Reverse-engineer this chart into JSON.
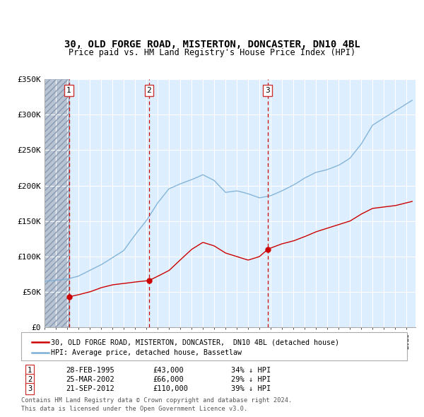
{
  "title1": "30, OLD FORGE ROAD, MISTERTON, DONCASTER, DN10 4BL",
  "title2": "Price paid vs. HM Land Registry's House Price Index (HPI)",
  "ylim": [
    0,
    350000
  ],
  "yticks": [
    0,
    50000,
    100000,
    150000,
    200000,
    250000,
    300000,
    350000
  ],
  "ytick_labels": [
    "£0",
    "£50K",
    "£100K",
    "£150K",
    "£200K",
    "£250K",
    "£300K",
    "£350K"
  ],
  "xlim_start": 1993.0,
  "xlim_end": 2025.8,
  "transactions": [
    {
      "num": 1,
      "date": "28-FEB-1995",
      "date_val": 1995.16,
      "price": 43000,
      "label": "34% ↓ HPI"
    },
    {
      "num": 2,
      "date": "25-MAR-2002",
      "date_val": 2002.23,
      "price": 66000,
      "label": "29% ↓ HPI"
    },
    {
      "num": 3,
      "date": "21-SEP-2012",
      "date_val": 2012.72,
      "price": 110000,
      "label": "39% ↓ HPI"
    }
  ],
  "legend_property": "30, OLD FORGE ROAD, MISTERTON, DONCASTER,  DN10 4BL (detached house)",
  "legend_hpi": "HPI: Average price, detached house, Bassetlaw",
  "footer1": "Contains HM Land Registry data © Crown copyright and database right 2024.",
  "footer2": "This data is licensed under the Open Government Licence v3.0.",
  "property_color": "#cc0000",
  "hpi_color": "#7bafd4",
  "bg_color": "#ddeeff",
  "grid_color": "#ffffff",
  "transaction_line_color": "#cc0000"
}
